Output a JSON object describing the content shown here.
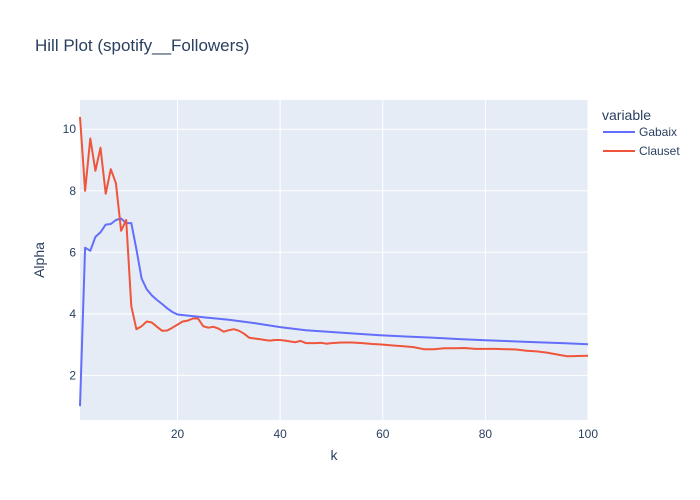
{
  "chart_data": {
    "type": "line",
    "title": "Hill Plot (spotify__Followers)",
    "xlabel": "k",
    "ylabel": "Alpha",
    "xlim": [
      1,
      100
    ],
    "ylim": [
      0.55,
      10.95
    ],
    "xticks": [
      20,
      40,
      60,
      80,
      100
    ],
    "yticks": [
      2,
      4,
      6,
      8,
      10
    ],
    "grid": true,
    "legend": {
      "title": "variable",
      "position": "top-right"
    },
    "series": [
      {
        "name": "Gabaix",
        "color": "#636efa",
        "x": [
          1,
          2,
          3,
          4,
          5,
          6,
          7,
          8,
          9,
          10,
          11,
          12,
          13,
          14,
          15,
          16,
          17,
          18,
          19,
          20,
          25,
          30,
          35,
          40,
          45,
          50,
          55,
          60,
          65,
          70,
          75,
          80,
          85,
          90,
          95,
          100
        ],
        "y": [
          1.0,
          6.15,
          6.05,
          6.5,
          6.65,
          6.9,
          6.92,
          7.05,
          7.1,
          6.95,
          6.95,
          6.1,
          5.15,
          4.8,
          4.6,
          4.45,
          4.32,
          4.18,
          4.06,
          3.98,
          3.89,
          3.81,
          3.7,
          3.57,
          3.47,
          3.41,
          3.35,
          3.3,
          3.26,
          3.22,
          3.18,
          3.14,
          3.11,
          3.08,
          3.05,
          3.01
        ]
      },
      {
        "name": "Clauset",
        "color": "#ef553b",
        "x": [
          1,
          2,
          3,
          4,
          5,
          6,
          7,
          8,
          9,
          10,
          11,
          12,
          13,
          14,
          15,
          16,
          17,
          18,
          19,
          20,
          21,
          22,
          23,
          24,
          25,
          26,
          27,
          28,
          29,
          30,
          31,
          32,
          33,
          34,
          35,
          36,
          37,
          38,
          39,
          40,
          41,
          42,
          43,
          44,
          45,
          46,
          47,
          48,
          49,
          50,
          52,
          54,
          56,
          58,
          60,
          62,
          64,
          66,
          68,
          70,
          72,
          74,
          76,
          78,
          80,
          82,
          84,
          86,
          88,
          90,
          92,
          94,
          96,
          98,
          100
        ],
        "y": [
          10.4,
          8.0,
          9.7,
          8.65,
          9.4,
          7.9,
          8.7,
          8.25,
          6.7,
          7.05,
          4.25,
          3.5,
          3.6,
          3.75,
          3.72,
          3.58,
          3.45,
          3.46,
          3.55,
          3.65,
          3.75,
          3.78,
          3.85,
          3.85,
          3.6,
          3.55,
          3.58,
          3.52,
          3.42,
          3.47,
          3.5,
          3.45,
          3.35,
          3.22,
          3.2,
          3.18,
          3.15,
          3.13,
          3.15,
          3.15,
          3.13,
          3.1,
          3.08,
          3.12,
          3.05,
          3.05,
          3.05,
          3.06,
          3.03,
          3.05,
          3.07,
          3.07,
          3.05,
          3.02,
          3.0,
          2.97,
          2.95,
          2.92,
          2.85,
          2.85,
          2.88,
          2.88,
          2.89,
          2.86,
          2.86,
          2.86,
          2.85,
          2.84,
          2.8,
          2.78,
          2.74,
          2.68,
          2.62,
          2.63,
          2.64
        ]
      }
    ]
  }
}
